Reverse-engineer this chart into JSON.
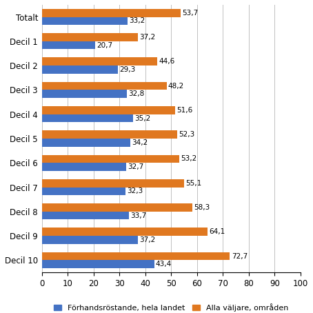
{
  "categories": [
    "Totalt",
    "Decil 1",
    "Decil 2",
    "Decil 3",
    "Decil 4",
    "Decil 5",
    "Decil 6",
    "Decil 7",
    "Decil 8",
    "Decil 9",
    "Decil 10"
  ],
  "blue_values": [
    33.2,
    20.7,
    29.3,
    32.8,
    35.2,
    34.2,
    32.7,
    32.3,
    33.7,
    37.2,
    43.4
  ],
  "orange_values": [
    53.7,
    37.2,
    44.6,
    48.2,
    51.6,
    52.3,
    53.2,
    55.1,
    58.3,
    64.1,
    72.7
  ],
  "blue_color": "#4472C4",
  "orange_color": "#E07820",
  "blue_label": "Förhandsröstande, hela landet",
  "orange_label": "Alla väljare, områden",
  "xlim": [
    0,
    100
  ],
  "xticks": [
    0,
    10,
    20,
    30,
    40,
    50,
    60,
    70,
    80,
    90,
    100
  ],
  "bar_height": 0.33,
  "tick_fontsize": 8.5,
  "legend_fontsize": 8.0,
  "value_fontsize": 7.5
}
